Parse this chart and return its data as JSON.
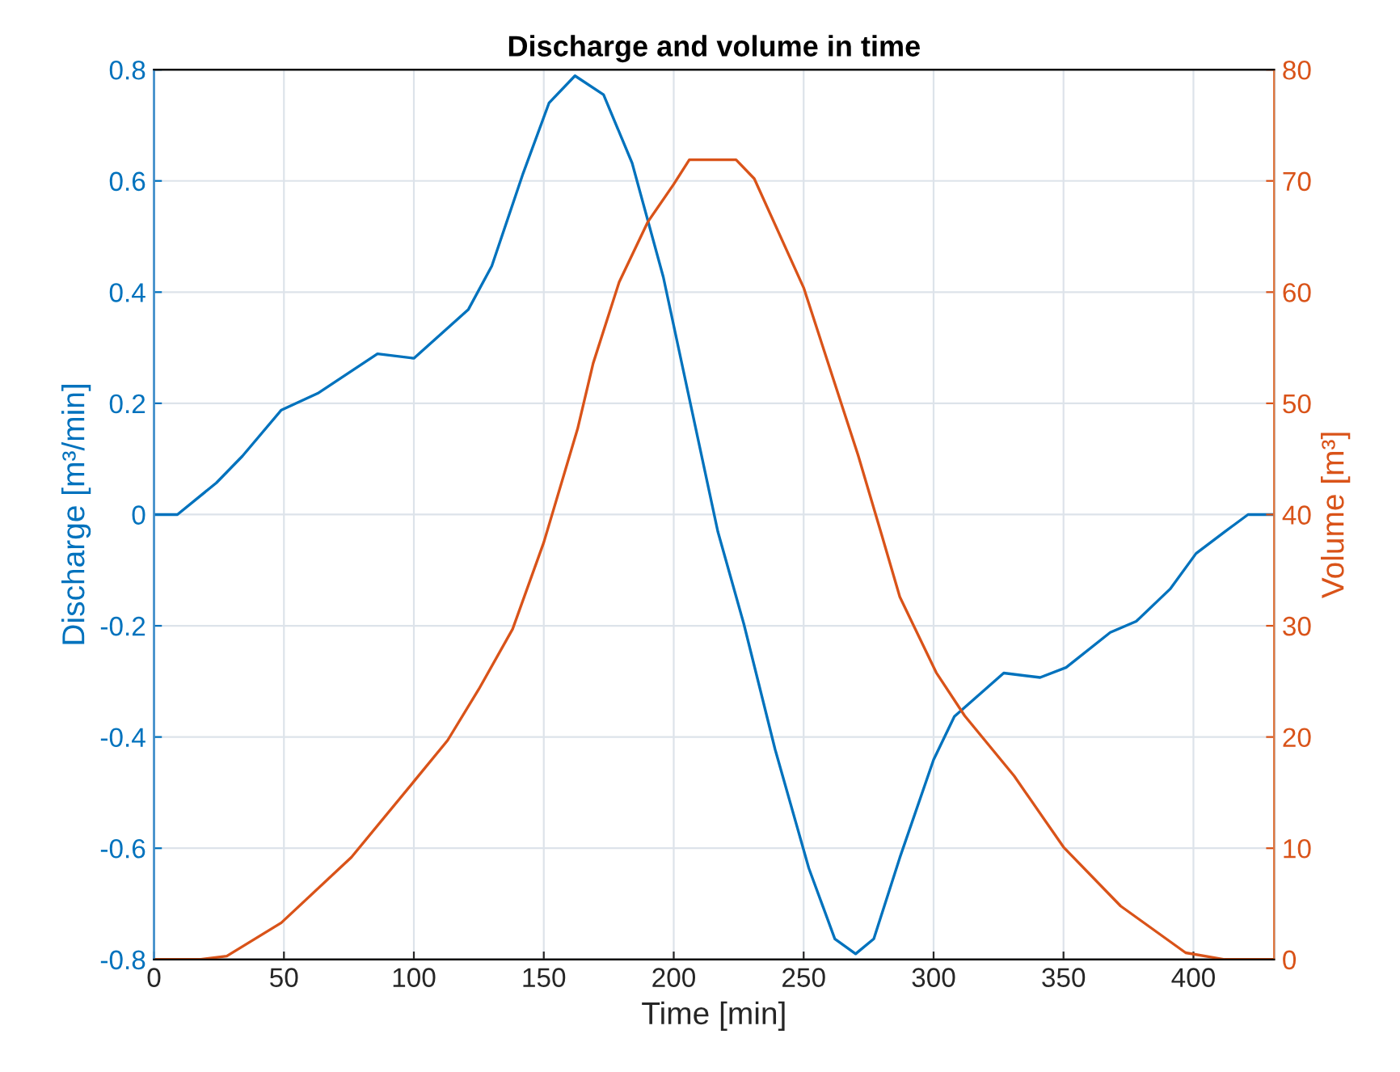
{
  "chart_data": {
    "type": "line",
    "title": "Discharge and volume in time",
    "xlabel": "Time [min]",
    "ylabel": "Discharge [m³/min]",
    "y2label": "Volume [m³]",
    "xlim": [
      0,
      431
    ],
    "xticks": [
      0,
      50,
      100,
      150,
      200,
      250,
      300,
      350,
      400
    ],
    "ylim": [
      -0.8,
      0.8
    ],
    "yticks": [
      -0.8,
      -0.6,
      -0.4,
      -0.2,
      0,
      0.2,
      0.4,
      0.6,
      0.8
    ],
    "y2lim": [
      0,
      80
    ],
    "y2ticks": [
      0,
      10,
      20,
      30,
      40,
      50,
      60,
      70,
      80
    ],
    "grid": true,
    "line_style": "solid",
    "marker": "none",
    "series": [
      {
        "color": "#0072bd",
        "x": [
          0,
          9,
          24,
          34,
          49,
          63,
          86,
          100,
          121,
          130,
          142,
          152,
          162,
          173,
          184,
          196,
          217,
          227,
          239,
          252,
          262,
          270,
          277,
          287,
          300,
          308,
          327,
          341,
          351,
          368,
          378,
          391,
          401,
          412,
          421,
          431
        ],
        "values": [
          0,
          0,
          0.057,
          0.105,
          0.188,
          0.218,
          0.289,
          0.281,
          0.369,
          0.447,
          0.613,
          0.74,
          0.789,
          0.755,
          0.632,
          0.427,
          -0.031,
          -0.197,
          -0.422,
          -0.636,
          -0.763,
          -0.79,
          -0.763,
          -0.617,
          -0.441,
          -0.363,
          -0.285,
          -0.293,
          -0.275,
          -0.212,
          -0.192,
          -0.134,
          -0.07,
          -0.031,
          0,
          0
        ]
      },
      {
        "color": "#d95319",
        "axis": "y2",
        "x": [
          0,
          18,
          28,
          49,
          76,
          100,
          113,
          125,
          138,
          150,
          163,
          169,
          179,
          190,
          200,
          206,
          224,
          231,
          250,
          271,
          280,
          287,
          301,
          312,
          331,
          350,
          372,
          397,
          412,
          431
        ],
        "values": [
          0,
          0,
          0.3,
          3.3,
          9.2,
          16,
          19.7,
          24.3,
          29.7,
          37.5,
          47.7,
          53.6,
          60.9,
          66.3,
          69.7,
          71.9,
          71.9,
          70.2,
          60.4,
          45.3,
          38.2,
          32.6,
          25.8,
          21.9,
          16.5,
          10.1,
          4.8,
          0.6,
          0,
          0
        ]
      }
    ]
  }
}
